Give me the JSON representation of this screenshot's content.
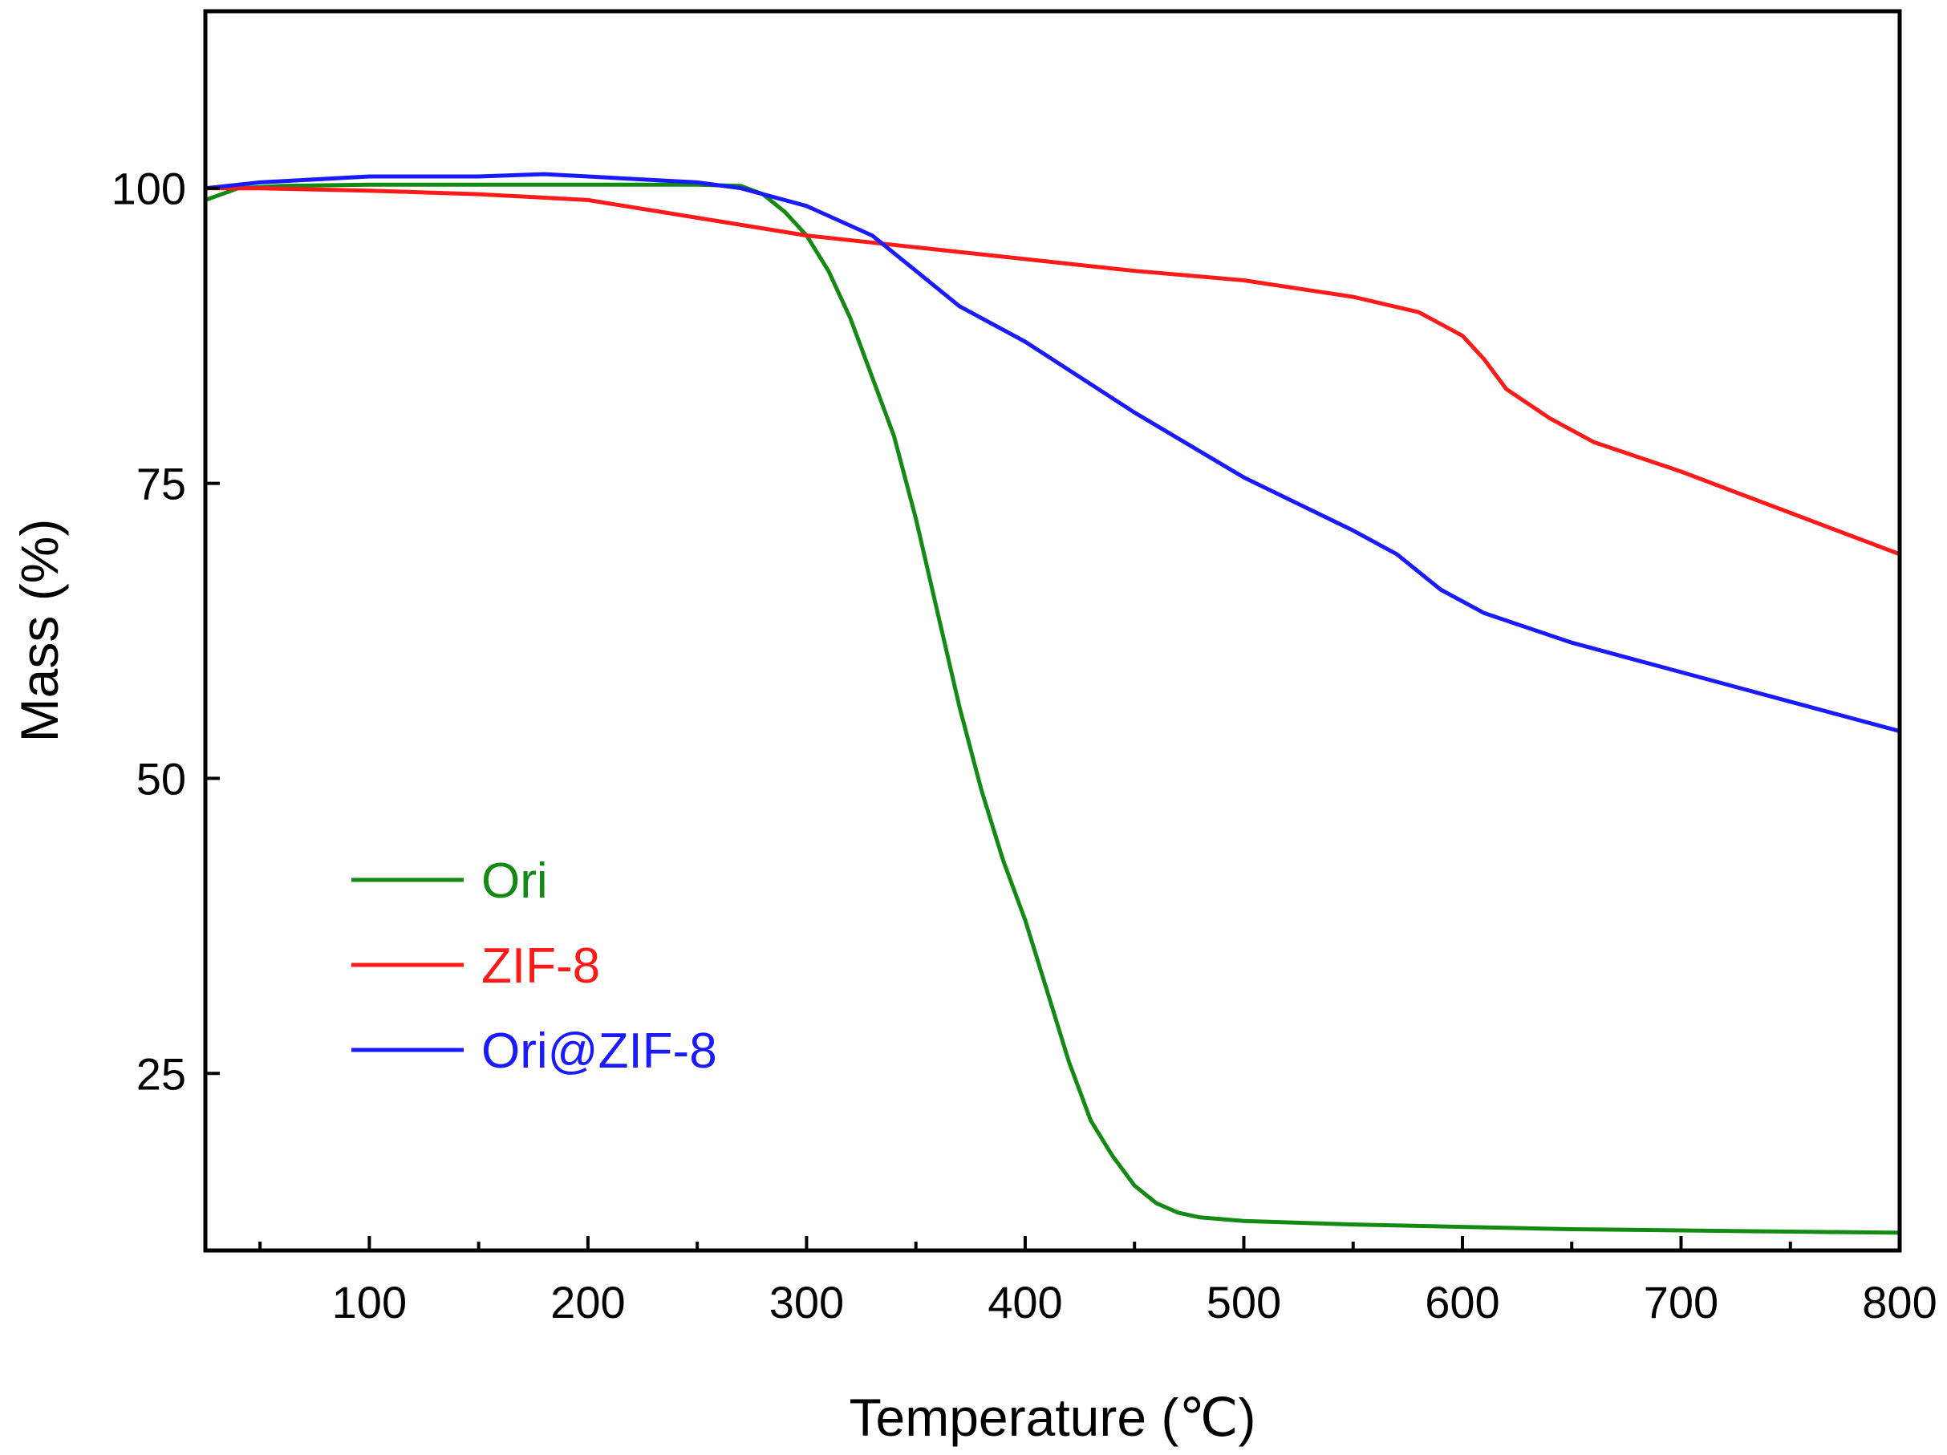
{
  "chart_data": {
    "type": "line",
    "title": "",
    "xlabel": "Temperature (℃)",
    "ylabel": "Mass (%)",
    "xlim": [
      25,
      800
    ],
    "ylim": [
      10,
      115
    ],
    "x_ticks": [
      100,
      200,
      300,
      400,
      500,
      600,
      700,
      800
    ],
    "x_minor_ticks": [
      50,
      150,
      250,
      350,
      450,
      550,
      650,
      750
    ],
    "y_ticks": [
      25,
      50,
      75,
      100
    ],
    "grid": false,
    "legend_position": "bottom-left",
    "series": [
      {
        "name": "Ori",
        "color": "#138a13",
        "x": [
          25,
          40,
          60,
          100,
          150,
          200,
          250,
          270,
          280,
          290,
          300,
          310,
          320,
          330,
          340,
          350,
          360,
          370,
          380,
          390,
          400,
          410,
          420,
          430,
          440,
          450,
          460,
          470,
          480,
          500,
          550,
          600,
          650,
          700,
          750,
          800
        ],
        "y": [
          99,
          100,
          100.2,
          100.3,
          100.3,
          100.3,
          100.3,
          100.2,
          99.5,
          98,
          96,
          93,
          89,
          84,
          79,
          72,
          64,
          56,
          49,
          43,
          38,
          32,
          26,
          21,
          18,
          15.5,
          14,
          13.2,
          12.8,
          12.5,
          12.2,
          12,
          11.8,
          11.7,
          11.6,
          11.5
        ]
      },
      {
        "name": "ZIF-8",
        "color": "#ff1a1a",
        "x": [
          25,
          50,
          100,
          150,
          200,
          250,
          300,
          350,
          400,
          450,
          500,
          550,
          580,
          600,
          610,
          620,
          640,
          660,
          700,
          750,
          800
        ],
        "y": [
          100,
          100,
          99.8,
          99.5,
          99,
          97.5,
          96,
          95,
          94,
          93,
          92.2,
          90.8,
          89.5,
          87.5,
          85.5,
          83,
          80.5,
          78.5,
          76,
          72.5,
          69
        ]
      },
      {
        "name": "Ori@ZIF-8",
        "color": "#1a1aff",
        "x": [
          25,
          50,
          100,
          150,
          180,
          200,
          250,
          270,
          300,
          330,
          350,
          370,
          400,
          450,
          500,
          550,
          570,
          590,
          610,
          650,
          700,
          750,
          800
        ],
        "y": [
          100,
          100.5,
          101,
          101,
          101.2,
          101,
          100.5,
          100,
          98.5,
          96,
          93,
          90,
          87,
          81,
          75.5,
          71,
          69,
          66,
          64,
          61.5,
          59,
          56.5,
          54
        ]
      }
    ]
  }
}
